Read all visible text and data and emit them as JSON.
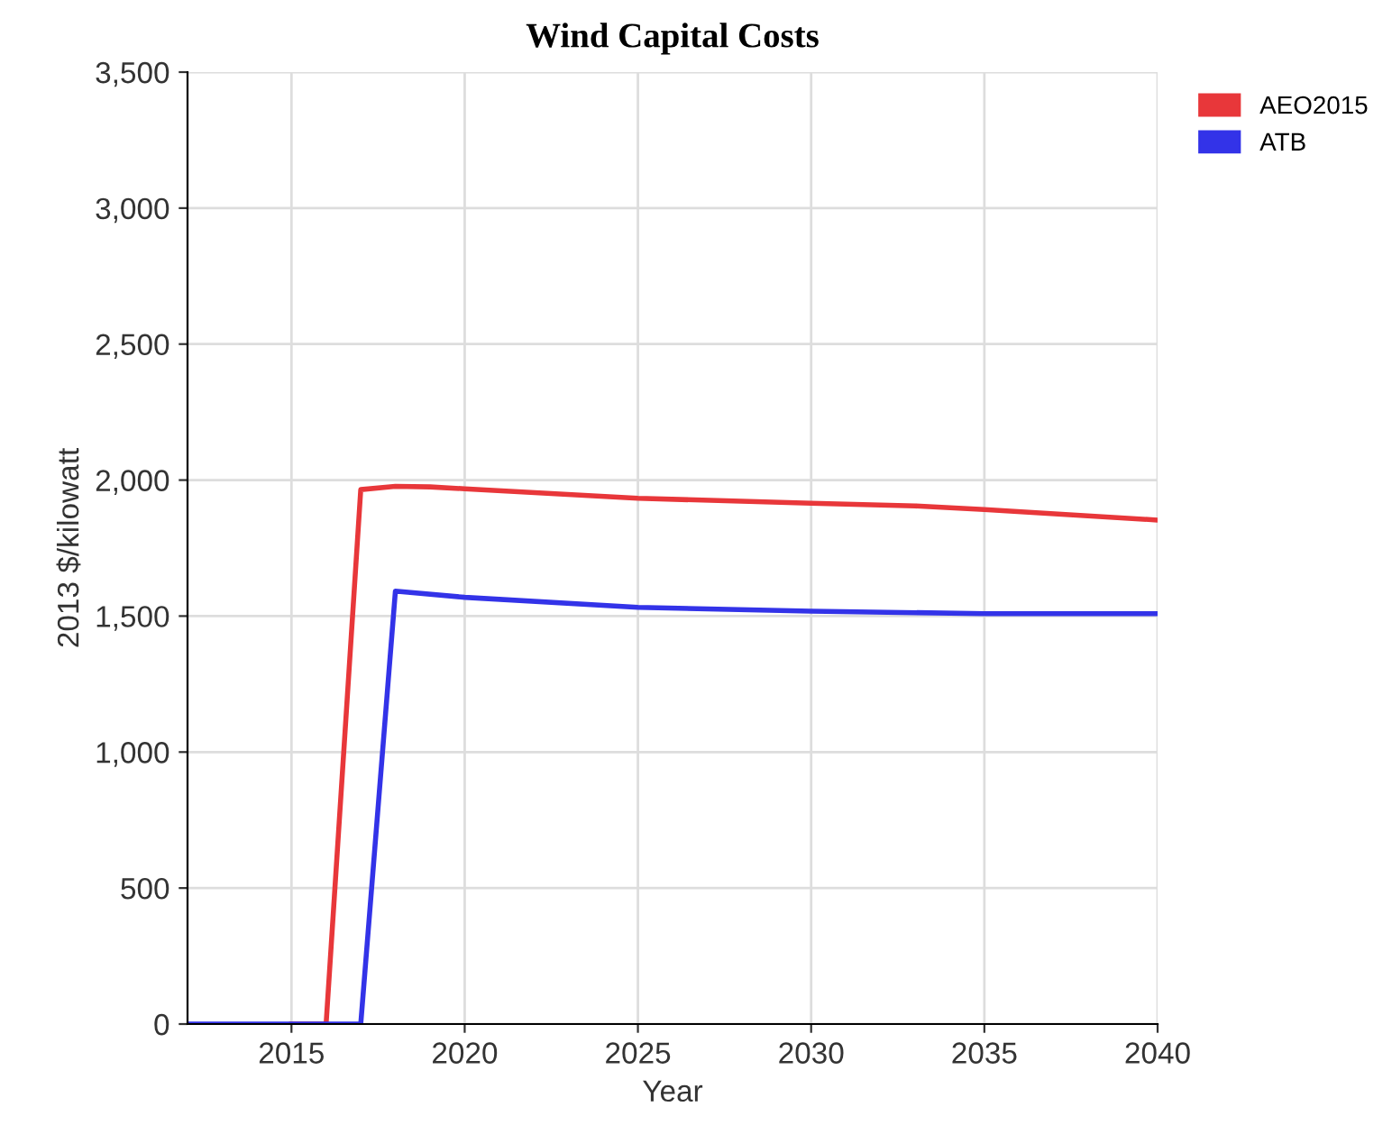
{
  "chart_data": {
    "type": "line",
    "title": "Wind Capital Costs",
    "xlabel": "Year",
    "ylabel": "2013 $/kilowatt",
    "series": [
      {
        "name": "AEO2015",
        "color": "#e8373a",
        "x": [
          2015,
          2016,
          2017,
          2018,
          2019,
          2020,
          2025,
          2030,
          2033,
          2035,
          2040
        ],
        "values": [
          0,
          0,
          1965,
          1977,
          1975,
          1968,
          1933,
          1915,
          1905,
          1892,
          1853
        ]
      },
      {
        "name": "ATB",
        "color": "#3333e8",
        "x": [
          2012,
          2013,
          2014,
          2015,
          2016,
          2017,
          2018,
          2020,
          2025,
          2030,
          2035,
          2040
        ],
        "values": [
          0,
          0,
          0,
          0,
          0,
          0,
          1592,
          1569,
          1532,
          1518,
          1509,
          1509
        ]
      }
    ],
    "xlim": [
      2012,
      2040
    ],
    "xticks": [
      2015,
      2020,
      2025,
      2030,
      2035,
      2040
    ],
    "ylim": [
      0,
      3500
    ],
    "yticks": [
      {
        "value": 0,
        "label": "0"
      },
      {
        "value": 500,
        "label": "500"
      },
      {
        "value": 1000,
        "label": "1,000"
      },
      {
        "value": 1500,
        "label": "1,500"
      },
      {
        "value": 2000,
        "label": "2,000"
      },
      {
        "value": 2500,
        "label": "2,500"
      },
      {
        "value": 3000,
        "label": "3,000"
      },
      {
        "value": 3500,
        "label": "3,500"
      }
    ],
    "grid": true,
    "legend": "top right",
    "marker": "none",
    "line_style": "solid"
  }
}
